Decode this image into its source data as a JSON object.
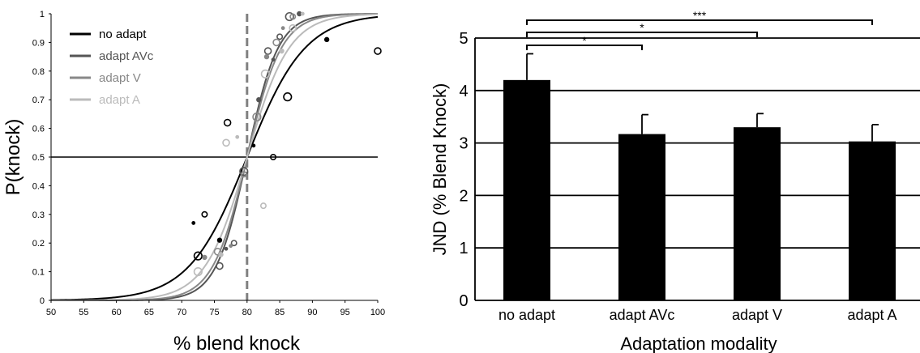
{
  "chart_data": [
    {
      "type": "line",
      "panel": "psychometric",
      "xlabel": "% blend knock",
      "ylabel": "P(knock)",
      "xlim": [
        50,
        100
      ],
      "ylim": [
        0,
        1
      ],
      "xticks": [
        "50",
        "55",
        "60",
        "65",
        "70",
        "75",
        "80",
        "85",
        "90",
        "95",
        "100"
      ],
      "yticks": [
        "0",
        "0.1",
        "0.2",
        "0.3",
        "0.4",
        "0.5",
        "0.6",
        "0.7",
        "0.8",
        "0.9",
        "1"
      ],
      "reference_lines": {
        "horizontal_y": 0.5,
        "vertical_dashed_x": 80
      },
      "legend_position": "top-left",
      "series": [
        {
          "name": "no adapt",
          "color": "#000000",
          "curve": {
            "pse": 80,
            "slope": 0.225
          },
          "points": [
            [
              71.8,
              0.27
            ],
            [
              73.5,
              0.3
            ],
            [
              72.5,
              0.155
            ],
            [
              75.8,
              0.21
            ],
            [
              77,
              0.62
            ],
            [
              81,
              0.54
            ],
            [
              84,
              0.5
            ],
            [
              86.2,
              0.71
            ],
            [
              92.2,
              0.91
            ],
            [
              100,
              0.87
            ]
          ]
        },
        {
          "name": "adapt AVc",
          "color": "#555555",
          "curve": {
            "pse": 80,
            "slope": 0.42
          },
          "points": [
            [
              75.8,
              0.12
            ],
            [
              76.8,
              0.18
            ],
            [
              78,
              0.2
            ],
            [
              79.5,
              0.45
            ],
            [
              81.8,
              0.7
            ],
            [
              83.2,
              0.87
            ],
            [
              84,
              0.84
            ],
            [
              85,
              0.92
            ],
            [
              86.5,
              0.99
            ],
            [
              88,
              1.0
            ]
          ]
        },
        {
          "name": "adapt V",
          "color": "#888888",
          "curve": {
            "pse": 80,
            "slope": 0.38
          },
          "points": [
            [
              73.5,
              0.15
            ],
            [
              75.5,
              0.17
            ],
            [
              77.5,
              0.19
            ],
            [
              79.5,
              0.44
            ],
            [
              81.5,
              0.64
            ],
            [
              83,
              0.85
            ],
            [
              84.5,
              0.9
            ],
            [
              85.5,
              0.95
            ],
            [
              87,
              0.99
            ]
          ]
        },
        {
          "name": "adapt A",
          "color": "#bbbbbb",
          "curve": {
            "pse": 80,
            "slope": 0.31
          },
          "points": [
            [
              72.5,
              0.1
            ],
            [
              76,
              0.16
            ],
            [
              76.8,
              0.55
            ],
            [
              78.5,
              0.57
            ],
            [
              82.5,
              0.33
            ],
            [
              82.8,
              0.79
            ],
            [
              85.3,
              0.87
            ],
            [
              87,
              0.95
            ],
            [
              88.5,
              1.0
            ]
          ]
        }
      ]
    },
    {
      "type": "bar",
      "panel": "jnd",
      "xlabel": "Adaptation modality",
      "ylabel": "JND (% Blend Knock)",
      "ylim": [
        0,
        5
      ],
      "yticks": [
        "0",
        "1",
        "2",
        "3",
        "4",
        "5"
      ],
      "grid": true,
      "categories": [
        "no adapt",
        "adapt AVc",
        "adapt V",
        "adapt A"
      ],
      "values": [
        4.2,
        3.17,
        3.3,
        3.03
      ],
      "errors": [
        0.5,
        0.37,
        0.26,
        0.32
      ],
      "bar_color": "#000000",
      "significance": [
        {
          "from": "no adapt",
          "to": "adapt AVc",
          "label": "*"
        },
        {
          "from": "no adapt",
          "to": "adapt V",
          "label": "*"
        },
        {
          "from": "no adapt",
          "to": "adapt A",
          "label": "***"
        }
      ]
    }
  ]
}
